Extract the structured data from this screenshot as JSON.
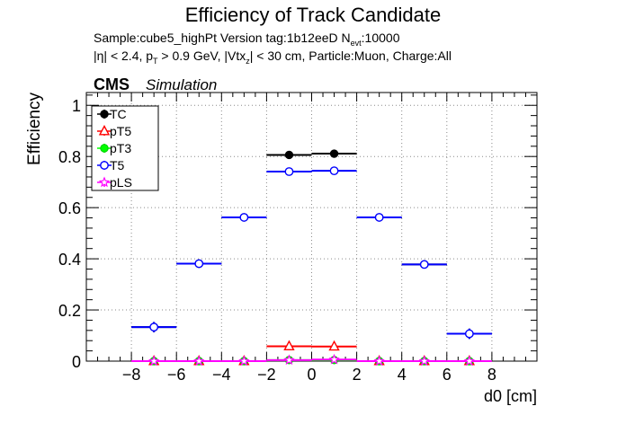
{
  "header": {
    "title": "Efficiency of Track Candidate",
    "sample_line": {
      "prefix": "Sample:cube5_highPt   Version tag:1b12eeD  N",
      "sub": "evt",
      "suffix": ":10000"
    },
    "cuts_line": {
      "part1": "|η| < 2.4, p",
      "sub1": "T",
      "part2": " > 0.9 GeV, |Vtx",
      "sub2": "z",
      "part3": "| < 30 cm, Particle:Muon, Charge:All"
    },
    "cms_label": "CMS",
    "simulation_label": "Simulation"
  },
  "chart_data": {
    "type": "scatter",
    "title": "Efficiency of Track Candidate",
    "xlabel": "d0 [cm]",
    "ylabel": "Efficiency",
    "xlim": [
      -10,
      10
    ],
    "ylim": [
      0,
      1.05
    ],
    "x_ticks": [
      -8,
      -6,
      -4,
      -2,
      0,
      2,
      4,
      6,
      8
    ],
    "x_tick_labels": [
      "−8",
      "−6",
      "−4",
      "−2",
      "0",
      "2",
      "4",
      "6",
      "8"
    ],
    "y_ticks": [
      0,
      0.2,
      0.4,
      0.6,
      0.8,
      1
    ],
    "y_tick_labels": [
      "0",
      "0.2",
      "0.4",
      "0.6",
      "0.8",
      "1"
    ],
    "grid": true,
    "legend_position": "top-left",
    "bins": [
      {
        "low": -8,
        "high": -6
      },
      {
        "low": -6,
        "high": -4
      },
      {
        "low": -4,
        "high": -2
      },
      {
        "low": -2,
        "high": 0
      },
      {
        "low": 0,
        "high": 2
      },
      {
        "low": 2,
        "high": 4
      },
      {
        "low": 4,
        "high": 6
      },
      {
        "low": 6,
        "high": 8
      }
    ],
    "series": [
      {
        "name": "TC",
        "color": "#000000",
        "marker": "filled-circle",
        "values": [
          0.133,
          0.381,
          0.562,
          0.806,
          0.811,
          0.562,
          0.378,
          0.107
        ],
        "errors": [
          0.02,
          0.006,
          0.004,
          0.004,
          0.004,
          0.004,
          0.006,
          0.02
        ]
      },
      {
        "name": "pT5",
        "color": "#ff0000",
        "marker": "open-triangle",
        "values": [
          0,
          0,
          0,
          0.058,
          0.057,
          0,
          0,
          0
        ],
        "errors": [
          0,
          0,
          0,
          0.003,
          0.003,
          0,
          0,
          0
        ]
      },
      {
        "name": "pT3",
        "color": "#00ff00",
        "marker": "filled-circle",
        "values": [
          0,
          0,
          0,
          0.004,
          0.004,
          0,
          0,
          0
        ],
        "errors": [
          0,
          0,
          0,
          0.001,
          0.001,
          0,
          0,
          0
        ]
      },
      {
        "name": "T5",
        "color": "#0000ff",
        "marker": "open-circle",
        "values": [
          0.133,
          0.381,
          0.562,
          0.741,
          0.744,
          0.562,
          0.378,
          0.107
        ],
        "errors": [
          0.02,
          0.006,
          0.004,
          0.004,
          0.004,
          0.004,
          0.006,
          0.02
        ]
      },
      {
        "name": "pLS",
        "color": "#ff00ff",
        "marker": "open-star",
        "values": [
          0,
          0,
          0,
          0.004,
          0.006,
          0,
          0,
          0
        ],
        "errors": [
          0,
          0,
          0,
          0.001,
          0.001,
          0,
          0,
          0
        ]
      }
    ]
  }
}
